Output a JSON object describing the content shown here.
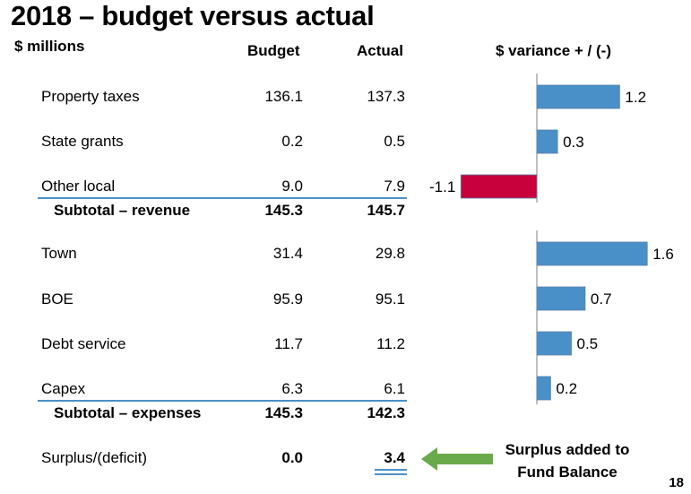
{
  "page": {
    "title": "2018 – budget versus actual",
    "units": "$ millions",
    "page_number": "18",
    "note": "Surplus added to Fund Balance"
  },
  "headers": {
    "budget": "Budget",
    "actual": "Actual",
    "variance": "$ variance + / (-)"
  },
  "rows": [
    {
      "label": "Property taxes",
      "budget": "136.1",
      "actual": "137.3",
      "bold": false
    },
    {
      "label": "State grants",
      "budget": "0.2",
      "actual": "0.5",
      "bold": false
    },
    {
      "label": "Other local",
      "budget": "9.0",
      "actual": "7.9",
      "bold": false
    },
    {
      "label": "Subtotal – revenue",
      "budget": "145.3",
      "actual": "145.7",
      "bold": true
    },
    {
      "label": "Town",
      "budget": "31.4",
      "actual": "29.8",
      "bold": false
    },
    {
      "label": "BOE",
      "budget": "95.9",
      "actual": "95.1",
      "bold": false
    },
    {
      "label": "Debt service",
      "budget": "11.7",
      "actual": "11.2",
      "bold": false
    },
    {
      "label": "Capex",
      "budget": "6.3",
      "actual": "6.1",
      "bold": false
    },
    {
      "label": "Subtotal – expenses",
      "budget": "145.3",
      "actual": "142.3",
      "bold": true
    },
    {
      "label": "Surplus/(deficit)",
      "budget": "0.0",
      "actual": "3.4",
      "bold": false
    }
  ],
  "colors": {
    "positive": "#4a90c8",
    "negative": "#c8003c",
    "arrow": "#6aaa4a",
    "rule": "#4a90c8"
  },
  "chart_data": {
    "type": "bar",
    "title": "$ variance + / (-)",
    "orientation": "horizontal",
    "groups": [
      {
        "name": "revenue",
        "categories": [
          "Property taxes",
          "State grants",
          "Other local"
        ],
        "values": [
          1.2,
          0.3,
          -1.1
        ],
        "labels": [
          "1.2",
          "0.3",
          "-1.1"
        ]
      },
      {
        "name": "expenses",
        "categories": [
          "Town",
          "BOE",
          "Debt service",
          "Capex"
        ],
        "values": [
          1.6,
          0.7,
          0.5,
          0.2
        ],
        "labels": [
          "1.6",
          "0.7",
          "0.5",
          "0.2"
        ]
      }
    ]
  }
}
